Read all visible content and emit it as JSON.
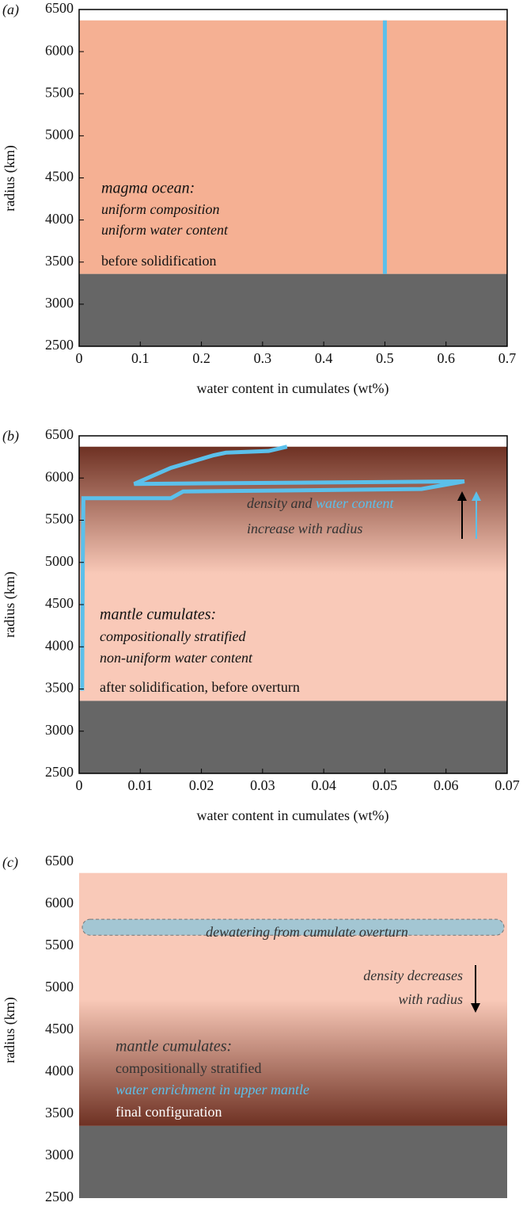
{
  "chart_data": [
    {
      "type": "line",
      "panel": "(a)",
      "ylabel": "radius (km)",
      "xlabel": "water content in cumulates (wt%)",
      "xlim": [
        0,
        0.7
      ],
      "xticks": [
        0,
        0.1,
        0.2,
        0.3,
        0.4,
        0.5,
        0.6,
        0.7
      ],
      "ylim": [
        2500,
        6500
      ],
      "yticks": [
        2500,
        3000,
        3500,
        4000,
        4500,
        5000,
        5500,
        6000,
        6500
      ],
      "axes_frame": true,
      "core_top": 3360,
      "surface": 6371,
      "core_color": "#666666",
      "mantle_color": "#f5b093",
      "series": [
        {
          "color": "#5bc0eb",
          "x": [
            0.5,
            0.5
          ],
          "values": [
            3360,
            6371
          ]
        }
      ],
      "annotations": [
        "magma ocean:",
        "uniform composition",
        "uniform water content",
        "before solidification"
      ]
    },
    {
      "type": "line",
      "panel": "(b)",
      "ylabel": "radius (km)",
      "xlabel": "water content in cumulates (wt%)",
      "xlim": [
        0,
        0.07
      ],
      "xticks": [
        0,
        0.01,
        0.02,
        0.03,
        0.04,
        0.05,
        0.06,
        0.07
      ],
      "ylim": [
        2500,
        6500
      ],
      "yticks": [
        2500,
        3000,
        3500,
        4000,
        4500,
        5000,
        5500,
        6000,
        6500
      ],
      "axes_frame": true,
      "core_top": 3360,
      "surface": 6371,
      "core_color": "#666666",
      "mantle_gradient": [
        "#6e3123",
        "#f9c9b8",
        "#f9c9b8"
      ],
      "series": [
        {
          "color": "#5bc0eb",
          "x": [
            0.0005,
            0.0006,
            0.0007,
            0.015,
            0.017,
            0.056,
            0.063,
            0.009,
            0.015,
            0.022,
            0.024,
            0.031,
            0.034
          ],
          "values": [
            3480,
            5000,
            5760,
            5760,
            5840,
            5870,
            5960,
            5930,
            6120,
            6270,
            6300,
            6320,
            6371
          ]
        }
      ],
      "annotations": [
        "density and",
        "water content",
        "increase with radius",
        "mantle cumulates:",
        "compositionally stratified",
        "non-uniform water content",
        "after solidification, before overturn"
      ]
    },
    {
      "type": "area",
      "panel": "(c)",
      "ylabel": "radius (km)",
      "ylim": [
        2500,
        6500
      ],
      "yticks": [
        2500,
        3000,
        3500,
        4000,
        4500,
        5000,
        5500,
        6000,
        6500
      ],
      "axes_frame": false,
      "core_top": 3360,
      "surface": 6371,
      "core_color": "#666666",
      "mantle_gradient": [
        "#f9c9b8",
        "#f9c9b8",
        "#6e3123"
      ],
      "band": {
        "range": [
          5630,
          5820
        ],
        "color": "#a3c6d3"
      },
      "annotations": [
        "dewatering from cumulate overturn",
        "density decreases",
        "with radius",
        "mantle cumulates:",
        "compositionally stratified",
        "water enrichment in upper mantle",
        "final configuration"
      ]
    }
  ]
}
